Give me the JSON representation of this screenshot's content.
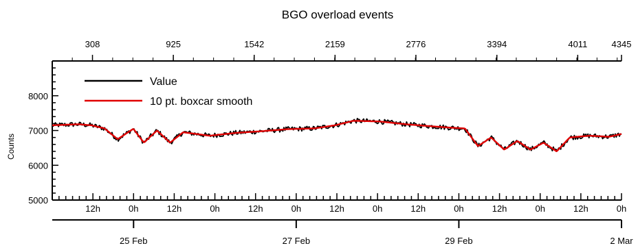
{
  "chart_data": {
    "type": "line",
    "title": "BGO overload events",
    "ylabel": "Counts",
    "xlabel": "",
    "ylim": [
      5000,
      9000
    ],
    "y_ticks": [
      5000,
      6000,
      7000,
      8000
    ],
    "top_axis": {
      "range": [
        1,
        4345
      ],
      "ticks": [
        308,
        925,
        1542,
        2159,
        2776,
        3394,
        4011,
        4345
      ]
    },
    "bottom_axis": {
      "hour_ticks": [
        {
          "t": 0.5,
          "label": "12h"
        },
        {
          "t": 1.0,
          "label": "0h"
        },
        {
          "t": 1.5,
          "label": "12h"
        },
        {
          "t": 2.0,
          "label": "0h"
        },
        {
          "t": 2.5,
          "label": "12h"
        },
        {
          "t": 3.0,
          "label": "0h"
        },
        {
          "t": 3.5,
          "label": "12h"
        },
        {
          "t": 4.0,
          "label": "0h"
        },
        {
          "t": 4.5,
          "label": "12h"
        },
        {
          "t": 5.0,
          "label": "0h"
        },
        {
          "t": 5.5,
          "label": "12h"
        },
        {
          "t": 6.0,
          "label": "0h"
        },
        {
          "t": 6.5,
          "label": "12h"
        },
        {
          "t": 7.0,
          "label": "0h"
        }
      ],
      "date_ticks": [
        {
          "t": 1,
          "label": "25 Feb"
        },
        {
          "t": 3,
          "label": "27 Feb"
        },
        {
          "t": 5,
          "label": "29 Feb"
        },
        {
          "t": 7,
          "label": "2 Mar"
        }
      ]
    },
    "legend_position": "top-left",
    "series": [
      {
        "name": "Value",
        "color": "#000000",
        "sample_index": [
          1,
          200,
          300,
          400,
          500,
          620,
          700,
          800,
          900,
          1000,
          1200,
          1400,
          1600,
          1800,
          2000,
          2159,
          2300,
          2500,
          2700,
          2900,
          3050,
          3150,
          3250,
          3350,
          3450,
          3550,
          3650,
          3750,
          3850,
          3950,
          4100,
          4250,
          4345
        ],
        "values": [
          7150,
          7180,
          7150,
          7060,
          6750,
          7050,
          6650,
          7000,
          6650,
          6950,
          6850,
          6930,
          6980,
          7040,
          7060,
          7150,
          7280,
          7260,
          7180,
          7120,
          7080,
          7060,
          6550,
          6800,
          6450,
          6700,
          6450,
          6650,
          6400,
          6800,
          6850,
          6820,
          6900
        ]
      },
      {
        "name": "10 pt. boxcar smooth",
        "color": "#e00000",
        "sample_index": [
          1,
          200,
          300,
          400,
          500,
          620,
          700,
          800,
          900,
          1000,
          1200,
          1400,
          1600,
          1800,
          2000,
          2159,
          2300,
          2500,
          2700,
          2900,
          3050,
          3150,
          3250,
          3350,
          3450,
          3550,
          3650,
          3750,
          3850,
          3950,
          4100,
          4250,
          4345
        ],
        "values": [
          7150,
          7180,
          7150,
          7060,
          6750,
          7050,
          6650,
          7000,
          6650,
          6950,
          6850,
          6930,
          6980,
          7040,
          7060,
          7150,
          7280,
          7260,
          7180,
          7120,
          7080,
          7060,
          6550,
          6800,
          6450,
          6700,
          6450,
          6650,
          6400,
          6800,
          6850,
          6820,
          6900
        ]
      }
    ]
  }
}
